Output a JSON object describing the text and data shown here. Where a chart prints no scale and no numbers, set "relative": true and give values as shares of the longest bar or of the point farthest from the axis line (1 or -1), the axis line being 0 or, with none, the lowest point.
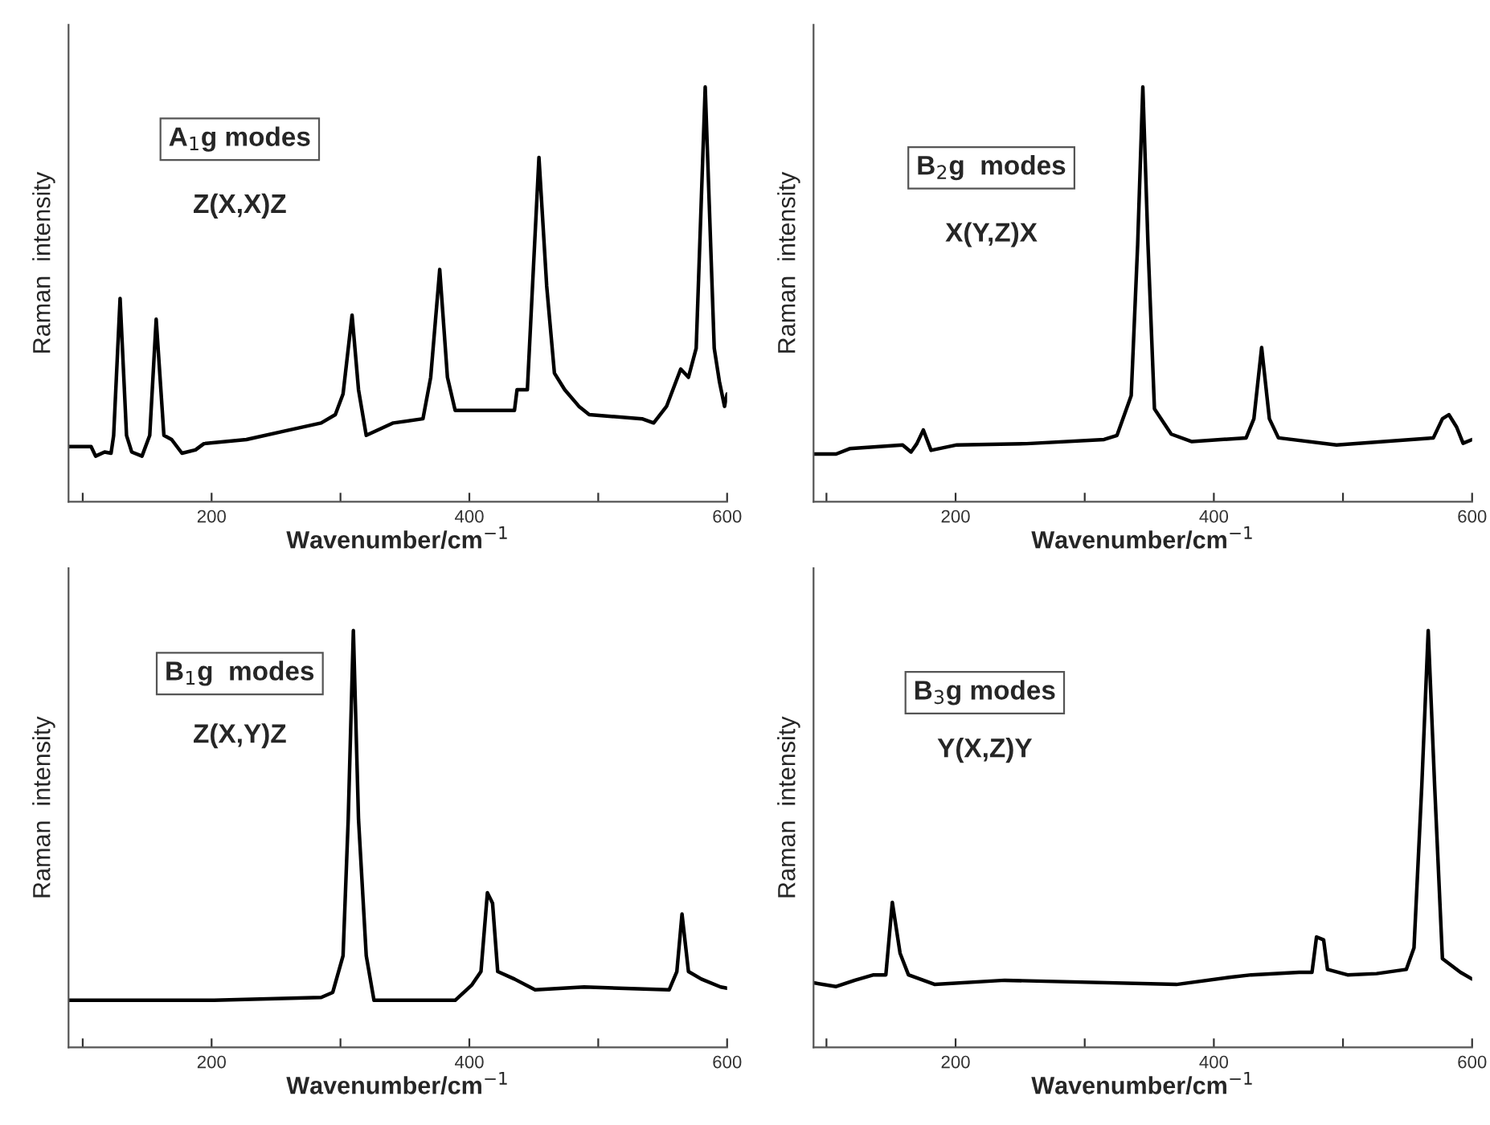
{
  "chart_data": [
    {
      "type": "line",
      "relative": true,
      "tick_labels": "x",
      "xlabel": "Wavenumber/cm$^{−1}$",
      "ylabel": "Raman  intensity",
      "xlim": [
        89,
        600
      ],
      "xticks": [
        {
          "value": 100,
          "label": null
        },
        200,
        {
          "value": 300,
          "label": null
        },
        400,
        {
          "value": 500,
          "label": null
        },
        600
      ],
      "annotations": [
        "A$_{1}$g modes",
        "Z(X,X)Z"
      ],
      "series": [
        {
          "color": "#000000",
          "x": [
            89,
            106.5,
            110,
            117,
            122,
            124,
            129,
            134,
            138,
            146,
            152,
            157,
            163,
            169,
            177,
            187.5,
            194,
            227,
            256,
            285,
            296,
            302,
            309,
            314,
            320,
            341,
            364,
            370,
            377,
            383,
            389,
            435,
            437,
            445,
            449,
            454,
            460,
            466,
            474,
            485,
            493,
            534,
            543,
            553,
            564,
            570,
            576,
            583,
            590,
            594,
            598,
            600
          ],
          "values": [
            0.133,
            0.133,
            0.11,
            0.12,
            0.117,
            0.16,
            0.49,
            0.16,
            0.12,
            0.11,
            0.16,
            0.44,
            0.16,
            0.15,
            0.117,
            0.125,
            0.14,
            0.15,
            0.17,
            0.19,
            0.21,
            0.26,
            0.45,
            0.27,
            0.16,
            0.19,
            0.2,
            0.3,
            0.56,
            0.3,
            0.22,
            0.22,
            0.27,
            0.27,
            0.52,
            0.83,
            0.52,
            0.31,
            0.27,
            0.23,
            0.21,
            0.2,
            0.19,
            0.23,
            0.32,
            0.3,
            0.37,
            1.0,
            0.37,
            0.29,
            0.23,
            0.26
          ]
        }
      ]
    },
    {
      "type": "line",
      "relative": true,
      "tick_labels": "x",
      "xlabel": "Wavenumber/cm$^{−1}$",
      "ylabel": "Raman  intensity",
      "xlim": [
        90,
        600
      ],
      "xticks": [
        {
          "value": 100,
          "label": null
        },
        200,
        {
          "value": 300,
          "label": null
        },
        400,
        {
          "value": 500,
          "label": null
        },
        600
      ],
      "annotations": [
        "B$_{2}$g  modes",
        "X(Y,Z)X"
      ],
      "series": [
        {
          "color": "#000000",
          "x": [
            90,
            107.5,
            118,
            159,
            165.5,
            170,
            175,
            181,
            201,
            255,
            315,
            325,
            336,
            341,
            345,
            349,
            354,
            367,
            383,
            425,
            431,
            437,
            443,
            450,
            495,
            570,
            577,
            582,
            588,
            593,
            600
          ],
          "values": [
            0.115,
            0.115,
            0.128,
            0.137,
            0.12,
            0.14,
            0.173,
            0.124,
            0.137,
            0.14,
            0.15,
            0.16,
            0.256,
            0.62,
            1.0,
            0.62,
            0.224,
            0.163,
            0.145,
            0.154,
            0.2,
            0.372,
            0.2,
            0.154,
            0.137,
            0.154,
            0.2,
            0.21,
            0.18,
            0.141,
            0.15
          ]
        }
      ]
    },
    {
      "type": "line",
      "relative": true,
      "tick_labels": "x",
      "xlabel": "Wavenumber/cm$^{−1}$",
      "ylabel": "Raman  intensity",
      "xlim": [
        89,
        600
      ],
      "xticks": [
        {
          "value": 100,
          "label": null
        },
        200,
        {
          "value": 300,
          "label": null
        },
        400,
        {
          "value": 500,
          "label": null
        },
        600
      ],
      "annotations": [
        "B$_{1}$g  modes",
        "Z(X,Y)Z"
      ],
      "series": [
        {
          "color": "#000000",
          "x": [
            89,
            202,
            285,
            294,
            302,
            306,
            310,
            314,
            320,
            326,
            389,
            402,
            409,
            414,
            418,
            422,
            435,
            451,
            489,
            555,
            561,
            565,
            570,
            580,
            595,
            600
          ],
          "values": [
            0.113,
            0.113,
            0.12,
            0.132,
            0.22,
            0.547,
            1.0,
            0.547,
            0.22,
            0.113,
            0.113,
            0.15,
            0.182,
            0.371,
            0.346,
            0.182,
            0.164,
            0.138,
            0.145,
            0.138,
            0.182,
            0.32,
            0.182,
            0.164,
            0.145,
            0.142
          ]
        }
      ]
    },
    {
      "type": "line",
      "relative": true,
      "tick_labels": "x",
      "xlabel": "Wavenumber/cm$^{−1}$",
      "ylabel": "Raman  intensity",
      "xlim": [
        90,
        600
      ],
      "xticks": [
        {
          "value": 100,
          "label": null
        },
        200,
        {
          "value": 300,
          "label": null
        },
        400,
        {
          "value": 500,
          "label": null
        },
        600
      ],
      "annotations": [
        "B$_{3}$g modes",
        "Y(X,Z)Y"
      ],
      "series": [
        {
          "color": "#000000",
          "x": [
            90,
            107.5,
            122,
            136.5,
            146,
            151,
            157,
            163.5,
            184,
            238,
            371,
            412,
            429,
            466,
            476,
            479.5,
            485,
            488,
            503.5,
            526,
            549,
            555,
            561,
            566,
            571,
            577,
            591,
            600
          ],
          "values": [
            0.155,
            0.146,
            0.161,
            0.174,
            0.174,
            0.348,
            0.226,
            0.174,
            0.151,
            0.161,
            0.151,
            0.168,
            0.174,
            0.18,
            0.18,
            0.265,
            0.258,
            0.187,
            0.174,
            0.177,
            0.187,
            0.239,
            0.626,
            1.0,
            0.626,
            0.213,
            0.18,
            0.164
          ]
        }
      ]
    }
  ]
}
